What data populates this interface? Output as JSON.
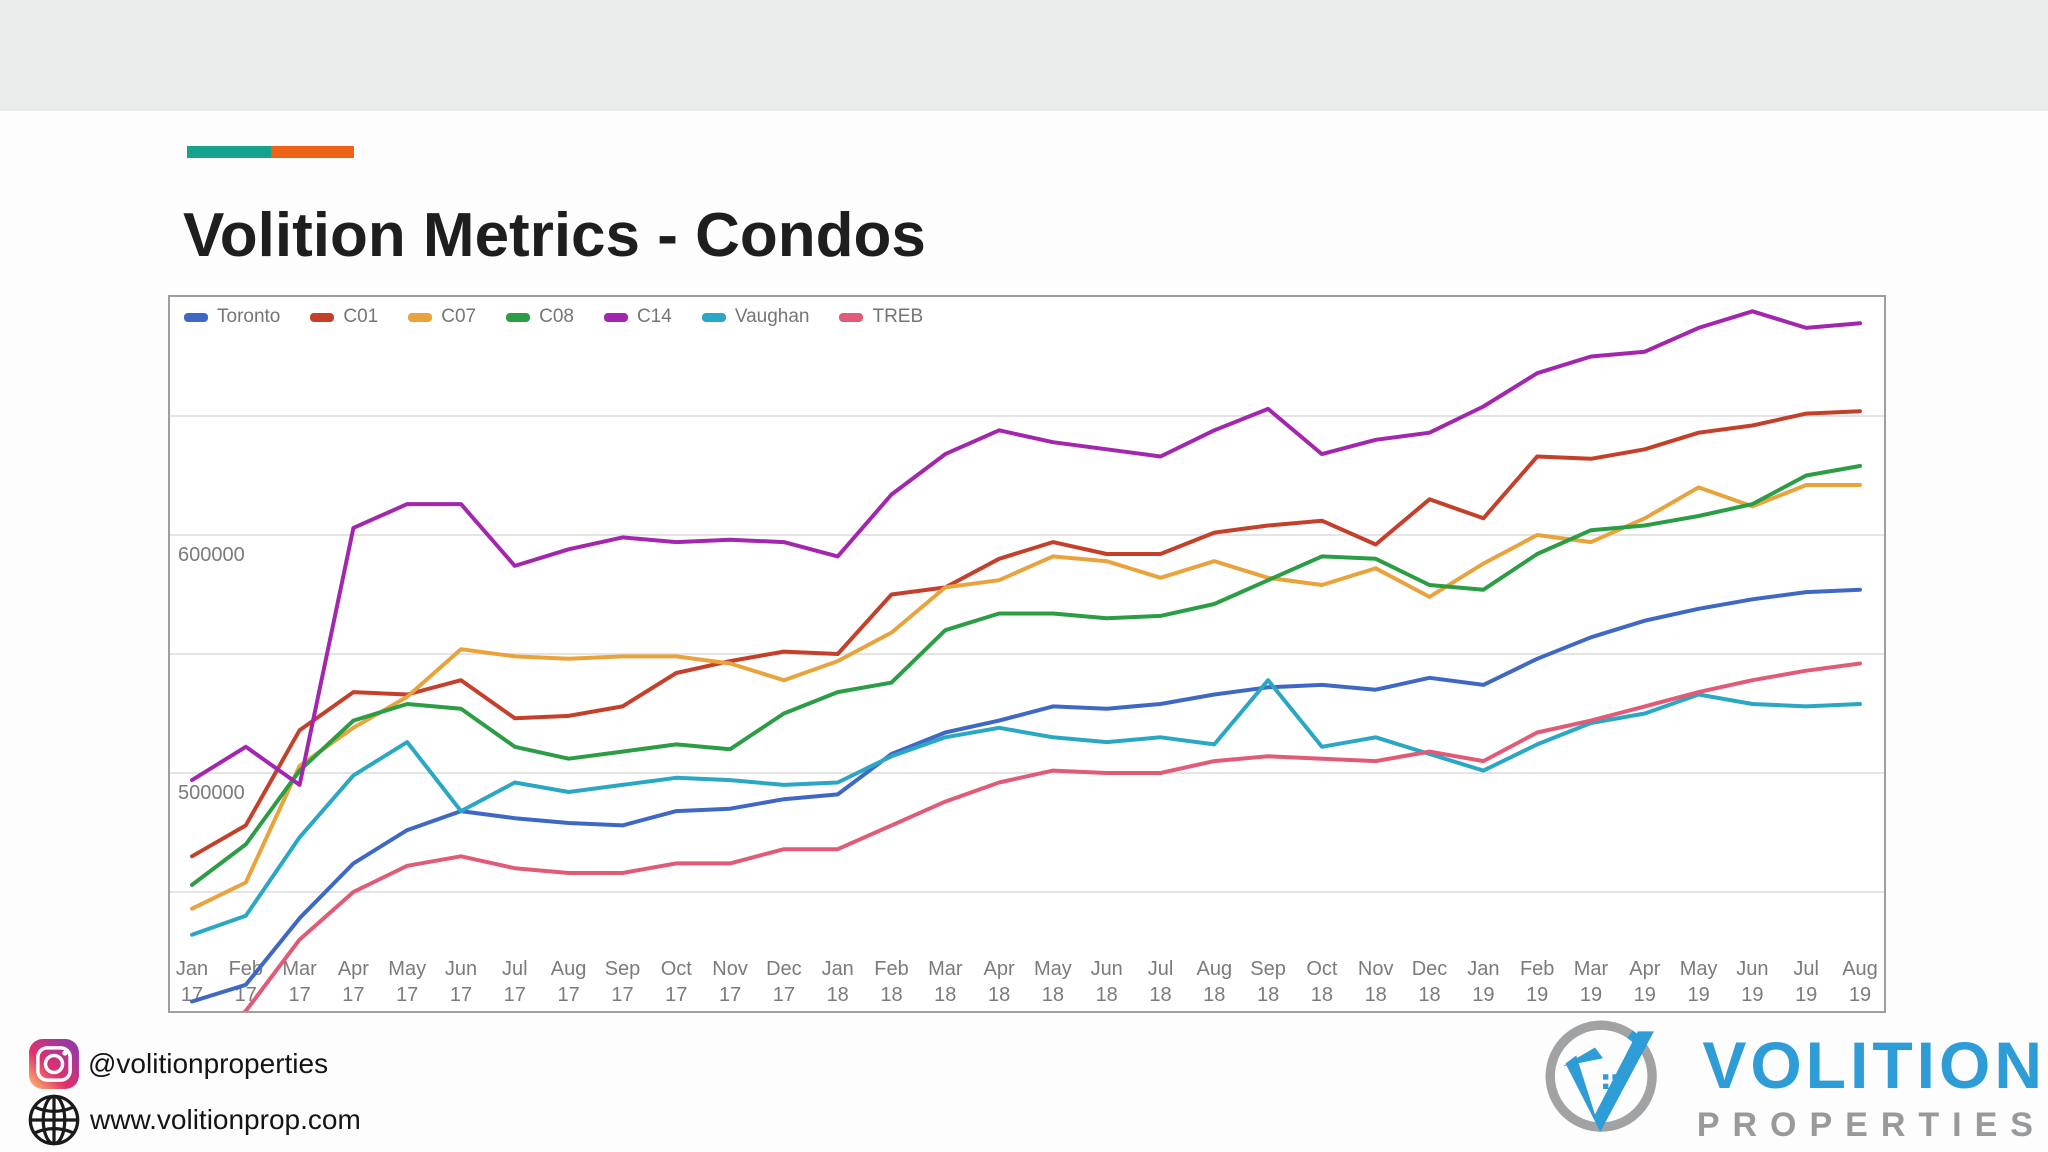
{
  "slide": {
    "title": "Volition Metrics - Condos",
    "band_color": "#e8eceb",
    "accent_teal": "#17a28e",
    "accent_orange": "#ee6317"
  },
  "footer": {
    "instagram_icon": "instagram-icon",
    "instagram_handle": "@volitionproperties",
    "globe_icon": "globe-icon",
    "website": "www.volitionprop.com"
  },
  "logo": {
    "mark_icon": "volition-v-circle-logo-icon",
    "name": "VOLITION",
    "subname": "PROPERTIES",
    "blue": "#2e9cd6",
    "gray": "#97999b"
  },
  "chart_data": {
    "type": "line",
    "grid": true,
    "legend_position": "top-left",
    "months": [
      "Jan 17",
      "Feb 17",
      "Mar 17",
      "Apr 17",
      "May 17",
      "Jun 17",
      "Jul 17",
      "Aug 17",
      "Sep 17",
      "Oct 17",
      "Nov 17",
      "Dec 17",
      "Jan 18",
      "Feb 18",
      "Mar 18",
      "Apr 18",
      "May 18",
      "Jun 18",
      "Jul 18",
      "Aug 18",
      "Sep 18",
      "Oct 18",
      "Nov 18",
      "Dec 18",
      "Jan 19",
      "Feb 19",
      "Mar 19",
      "Apr 19",
      "May 19",
      "Jun 19",
      "Jul 19",
      "Aug 19"
    ],
    "y_axis": {
      "min": 400000,
      "max": 700000,
      "gridline_step": 50000,
      "labeled_ticks": [
        600000,
        500000
      ]
    },
    "series": [
      {
        "name": "Toronto",
        "color": "#3f68c5",
        "values": [
          404000,
          411000,
          439000,
          462000,
          476000,
          484000,
          481000,
          479000,
          478000,
          484000,
          485000,
          489000,
          491000,
          508000,
          517000,
          522000,
          528000,
          527000,
          529000,
          533000,
          536000,
          537000,
          535000,
          540000,
          537000,
          548000,
          557000,
          564000,
          569000,
          573000,
          576000,
          577000
        ]
      },
      {
        "name": "C01",
        "color": "#c4402a",
        "values": [
          465000,
          478000,
          518000,
          534000,
          533000,
          539000,
          523000,
          524000,
          528000,
          542000,
          547000,
          551000,
          550000,
          575000,
          578000,
          590000,
          597000,
          592000,
          592000,
          601000,
          604000,
          606000,
          596000,
          615000,
          607000,
          633000,
          632000,
          636000,
          643000,
          646000,
          651000,
          652000
        ]
      },
      {
        "name": "C07",
        "color": "#e8a33d",
        "values": [
          443000,
          454000,
          503000,
          519000,
          532000,
          552000,
          549000,
          548000,
          549000,
          549000,
          546000,
          539000,
          547000,
          559000,
          578000,
          581000,
          591000,
          589000,
          582000,
          589000,
          582000,
          579000,
          586000,
          574000,
          588000,
          600000,
          597000,
          607000,
          620000,
          612000,
          621000,
          621000
        ]
      },
      {
        "name": "C08",
        "color": "#2a9d45",
        "values": [
          453000,
          470000,
          501000,
          522000,
          529000,
          527000,
          511000,
          506000,
          509000,
          512000,
          510000,
          525000,
          534000,
          538000,
          560000,
          567000,
          567000,
          565000,
          566000,
          571000,
          581000,
          591000,
          590000,
          579000,
          577000,
          592000,
          602000,
          604000,
          608000,
          613000,
          625000,
          629000
        ]
      },
      {
        "name": "C14",
        "color": "#a326ae",
        "values": [
          497000,
          511000,
          495000,
          603000,
          613000,
          613000,
          587000,
          594000,
          599000,
          597000,
          598000,
          597000,
          591000,
          617000,
          634000,
          644000,
          639000,
          636000,
          633000,
          644000,
          653000,
          634000,
          640000,
          643000,
          654000,
          668000,
          675000,
          677000,
          687000,
          694000,
          687000,
          689000
        ]
      },
      {
        "name": "Vaughan",
        "color": "#2aa7c5",
        "values": [
          432000,
          440000,
          473000,
          499000,
          513000,
          484000,
          496000,
          492000,
          495000,
          498000,
          497000,
          495000,
          496000,
          507000,
          515000,
          519000,
          515000,
          513000,
          515000,
          512000,
          539000,
          511000,
          515000,
          508000,
          501000,
          512000,
          521000,
          525000,
          533000,
          529000,
          528000,
          529000
        ]
      },
      {
        "name": "TREB",
        "color": "#e15b78",
        "values": [
          385000,
          400000,
          430000,
          450000,
          461000,
          465000,
          460000,
          458000,
          458000,
          462000,
          462000,
          468000,
          468000,
          478000,
          488000,
          496000,
          501000,
          500000,
          500000,
          505000,
          507000,
          506000,
          505000,
          509000,
          505000,
          517000,
          522000,
          528000,
          534000,
          539000,
          543000,
          546000
        ]
      }
    ]
  }
}
